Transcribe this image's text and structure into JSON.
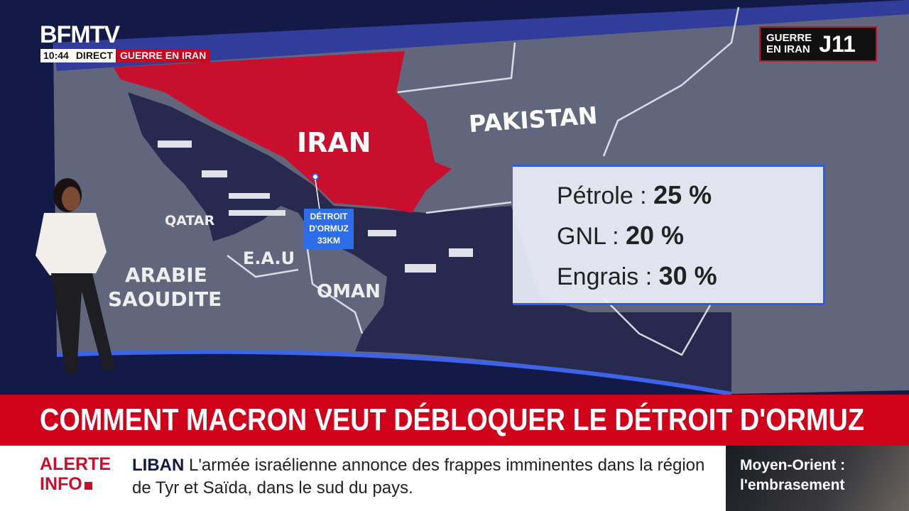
{
  "channel": {
    "logo": "BFMTV",
    "time": "10:44",
    "live": "DIRECT",
    "topic": "GUERRE EN IRAN"
  },
  "day_badge": {
    "line1": "GUERRE",
    "line2": "EN IRAN",
    "day": "J11"
  },
  "map": {
    "labels": {
      "iran": "IRAN",
      "pakistan": "PAKISTAN",
      "qatar": "QATAR",
      "eau": "E.A.U",
      "oman": "OMAN",
      "arabie1": "ARABIE",
      "arabie2": "SAOUDITE"
    },
    "strait": {
      "line1": "DÉTROIT",
      "line2": "D'ORMUZ",
      "distance": "33KM"
    },
    "colors": {
      "iran": "#c8102e",
      "land": "#62667c",
      "sea": "#272a4e"
    }
  },
  "stats": [
    {
      "label": "Pétrole",
      "value": "25 %"
    },
    {
      "label": "GNL",
      "value": "20 %"
    },
    {
      "label": "Engrais",
      "value": "30 %"
    }
  ],
  "headline": "COMMENT MACRON VEUT DÉBLOQUER LE DÉTROIT D'ORMUZ",
  "ticker": {
    "alert1": "ALERTE",
    "alert2": "INFO",
    "tag": "LIBAN",
    "text": "L'armée israélienne annonce des frappes imminentes dans la région de Tyr et Saïda, dans le sud du pays."
  },
  "side_panel": {
    "line1": "Moyen-Orient :",
    "line2": "l'embrasement"
  }
}
